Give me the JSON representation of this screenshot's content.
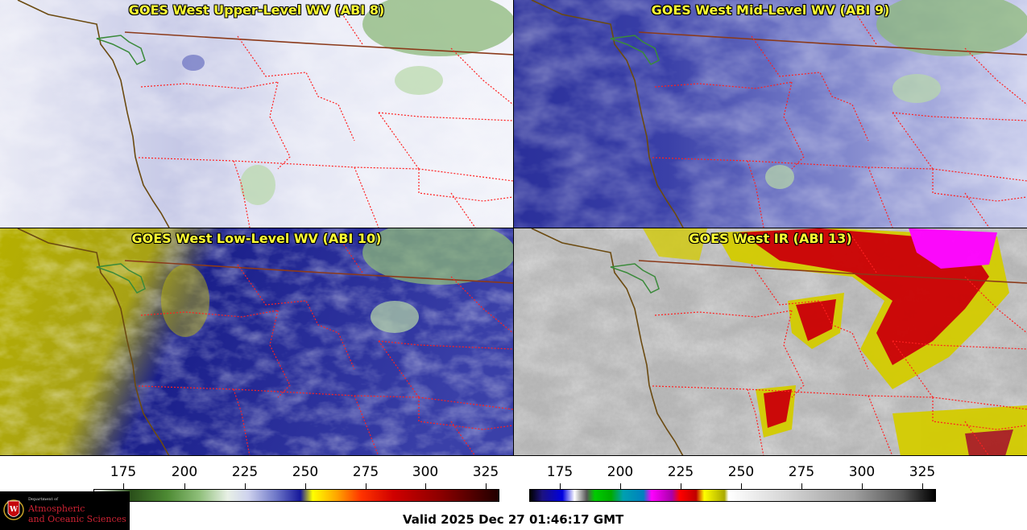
{
  "panels": [
    {
      "title": "GOES West Upper-Level WV (ABI 8)"
    },
    {
      "title": "GOES West Mid-Level WV (ABI 9)"
    },
    {
      "title": "GOES West Low-Level WV (ABI 10)"
    },
    {
      "title": "GOES West IR (ABI 13)"
    }
  ],
  "colorbar_left": {
    "ticks": [
      "175",
      "200",
      "225",
      "250",
      "275",
      "300",
      "325"
    ]
  },
  "colorbar_right": {
    "ticks": [
      "175",
      "200",
      "225",
      "250",
      "275",
      "300",
      "325"
    ]
  },
  "logo": {
    "dept": "Department of",
    "line1": "Atmospheric",
    "line2": "and Oceanic Sciences"
  },
  "valid_time": "Valid 2025 Dec 27 01:46:17 GMT",
  "colors": {
    "title_text": "#ffff33",
    "state_borders": "#ff2020",
    "coastline": "#6b4a10"
  }
}
